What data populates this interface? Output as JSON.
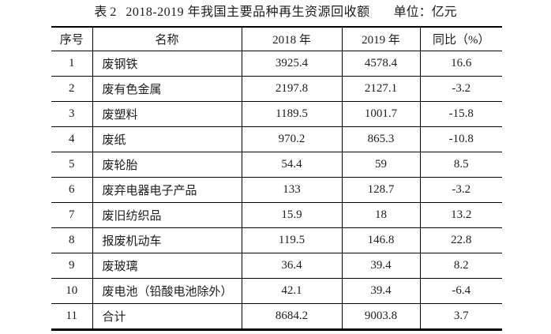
{
  "table": {
    "title_prefix": "表 2",
    "title_main": "2018-2019 年我国主要品种再生资源回收额",
    "unit_label": "单位：亿元",
    "columns": [
      "序号",
      "名称",
      "2018 年",
      "2019 年",
      "同比（%）"
    ],
    "rows": [
      [
        "1",
        "废钢铁",
        "3925.4",
        "4578.4",
        "16.6"
      ],
      [
        "2",
        "废有色金属",
        "2197.8",
        "2127.1",
        "-3.2"
      ],
      [
        "3",
        "废塑料",
        "1189.5",
        "1001.7",
        "-15.8"
      ],
      [
        "4",
        "废纸",
        "970.2",
        "865.3",
        "-10.8"
      ],
      [
        "5",
        "废轮胎",
        "54.4",
        "59",
        "8.5"
      ],
      [
        "6",
        "废弃电器电子产品",
        "133",
        "128.7",
        "-3.2"
      ],
      [
        "7",
        "废旧纺织品",
        "15.9",
        "18",
        "13.2"
      ],
      [
        "8",
        "报废机动车",
        "119.5",
        "146.8",
        "22.8"
      ],
      [
        "9",
        "废玻璃",
        "36.4",
        "39.4",
        "8.2"
      ],
      [
        "10",
        "废电池（铅酸电池除外）",
        "42.1",
        "39.4",
        "-6.4"
      ],
      [
        "11",
        "合计",
        "8684.2",
        "9003.8",
        "3.7"
      ]
    ]
  }
}
